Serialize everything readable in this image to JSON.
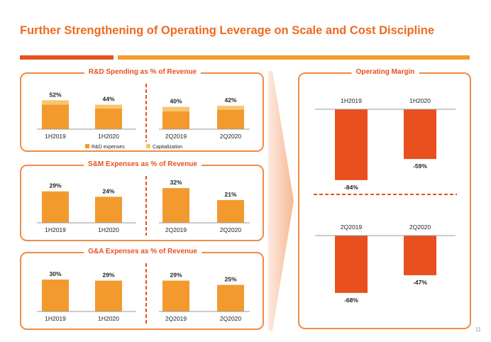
{
  "slide": {
    "title": "Further Strengthening of Operating Leverage on Scale and Cost Discipline",
    "page_number": "11"
  },
  "colors": {
    "title": "#EE6A1E",
    "panel_border": "#F08C45",
    "bar_main": "#F39A2E",
    "bar_capitalization": "#F7C66E",
    "bar_margin": "#E8501E",
    "rule_dark": "#E8501E",
    "rule_light": "#F49B2E"
  },
  "chart_data": [
    {
      "id": "rd",
      "type": "bar",
      "title": "R&D Spending as % of Revenue",
      "categories": [
        "1H2019",
        "1H2020",
        "2Q2019",
        "2Q2020"
      ],
      "series": [
        {
          "name": "R&D expenses",
          "values": [
            44,
            37,
            32,
            35
          ]
        },
        {
          "name": "Capitalization",
          "values": [
            8,
            7,
            8,
            7
          ]
        }
      ],
      "data_labels": [
        "52%",
        "44%",
        "40%",
        "42%"
      ],
      "legend": [
        "R&D expenses",
        "Capitalization"
      ],
      "stacked": true,
      "ylim": [
        0,
        60
      ]
    },
    {
      "id": "sm",
      "type": "bar",
      "title": "S&M Expenses as % of Revenue",
      "categories": [
        "1H2019",
        "1H2020",
        "2Q2019",
        "2Q2020"
      ],
      "values": [
        29,
        24,
        32,
        21
      ],
      "data_labels": [
        "29%",
        "24%",
        "32%",
        "21%"
      ],
      "ylim": [
        0,
        36
      ]
    },
    {
      "id": "ga",
      "type": "bar",
      "title": "G&A Expenses as % of Revenue",
      "categories": [
        "1H2019",
        "1H2020",
        "2Q2019",
        "2Q2020"
      ],
      "values": [
        30,
        29,
        29,
        25
      ],
      "data_labels": [
        "30%",
        "29%",
        "29%",
        "25%"
      ],
      "ylim": [
        0,
        36
      ]
    },
    {
      "id": "om",
      "type": "bar",
      "title": "Operating Margin",
      "groups": [
        {
          "categories": [
            "1H2019",
            "1H2020"
          ],
          "values": [
            -84,
            -59
          ],
          "data_labels": [
            "-84%",
            "-59%"
          ]
        },
        {
          "categories": [
            "2Q2019",
            "2Q2020"
          ],
          "values": [
            -68,
            -47
          ],
          "data_labels": [
            "-68%",
            "-47%"
          ]
        }
      ],
      "ylim": [
        -90,
        0
      ]
    }
  ]
}
